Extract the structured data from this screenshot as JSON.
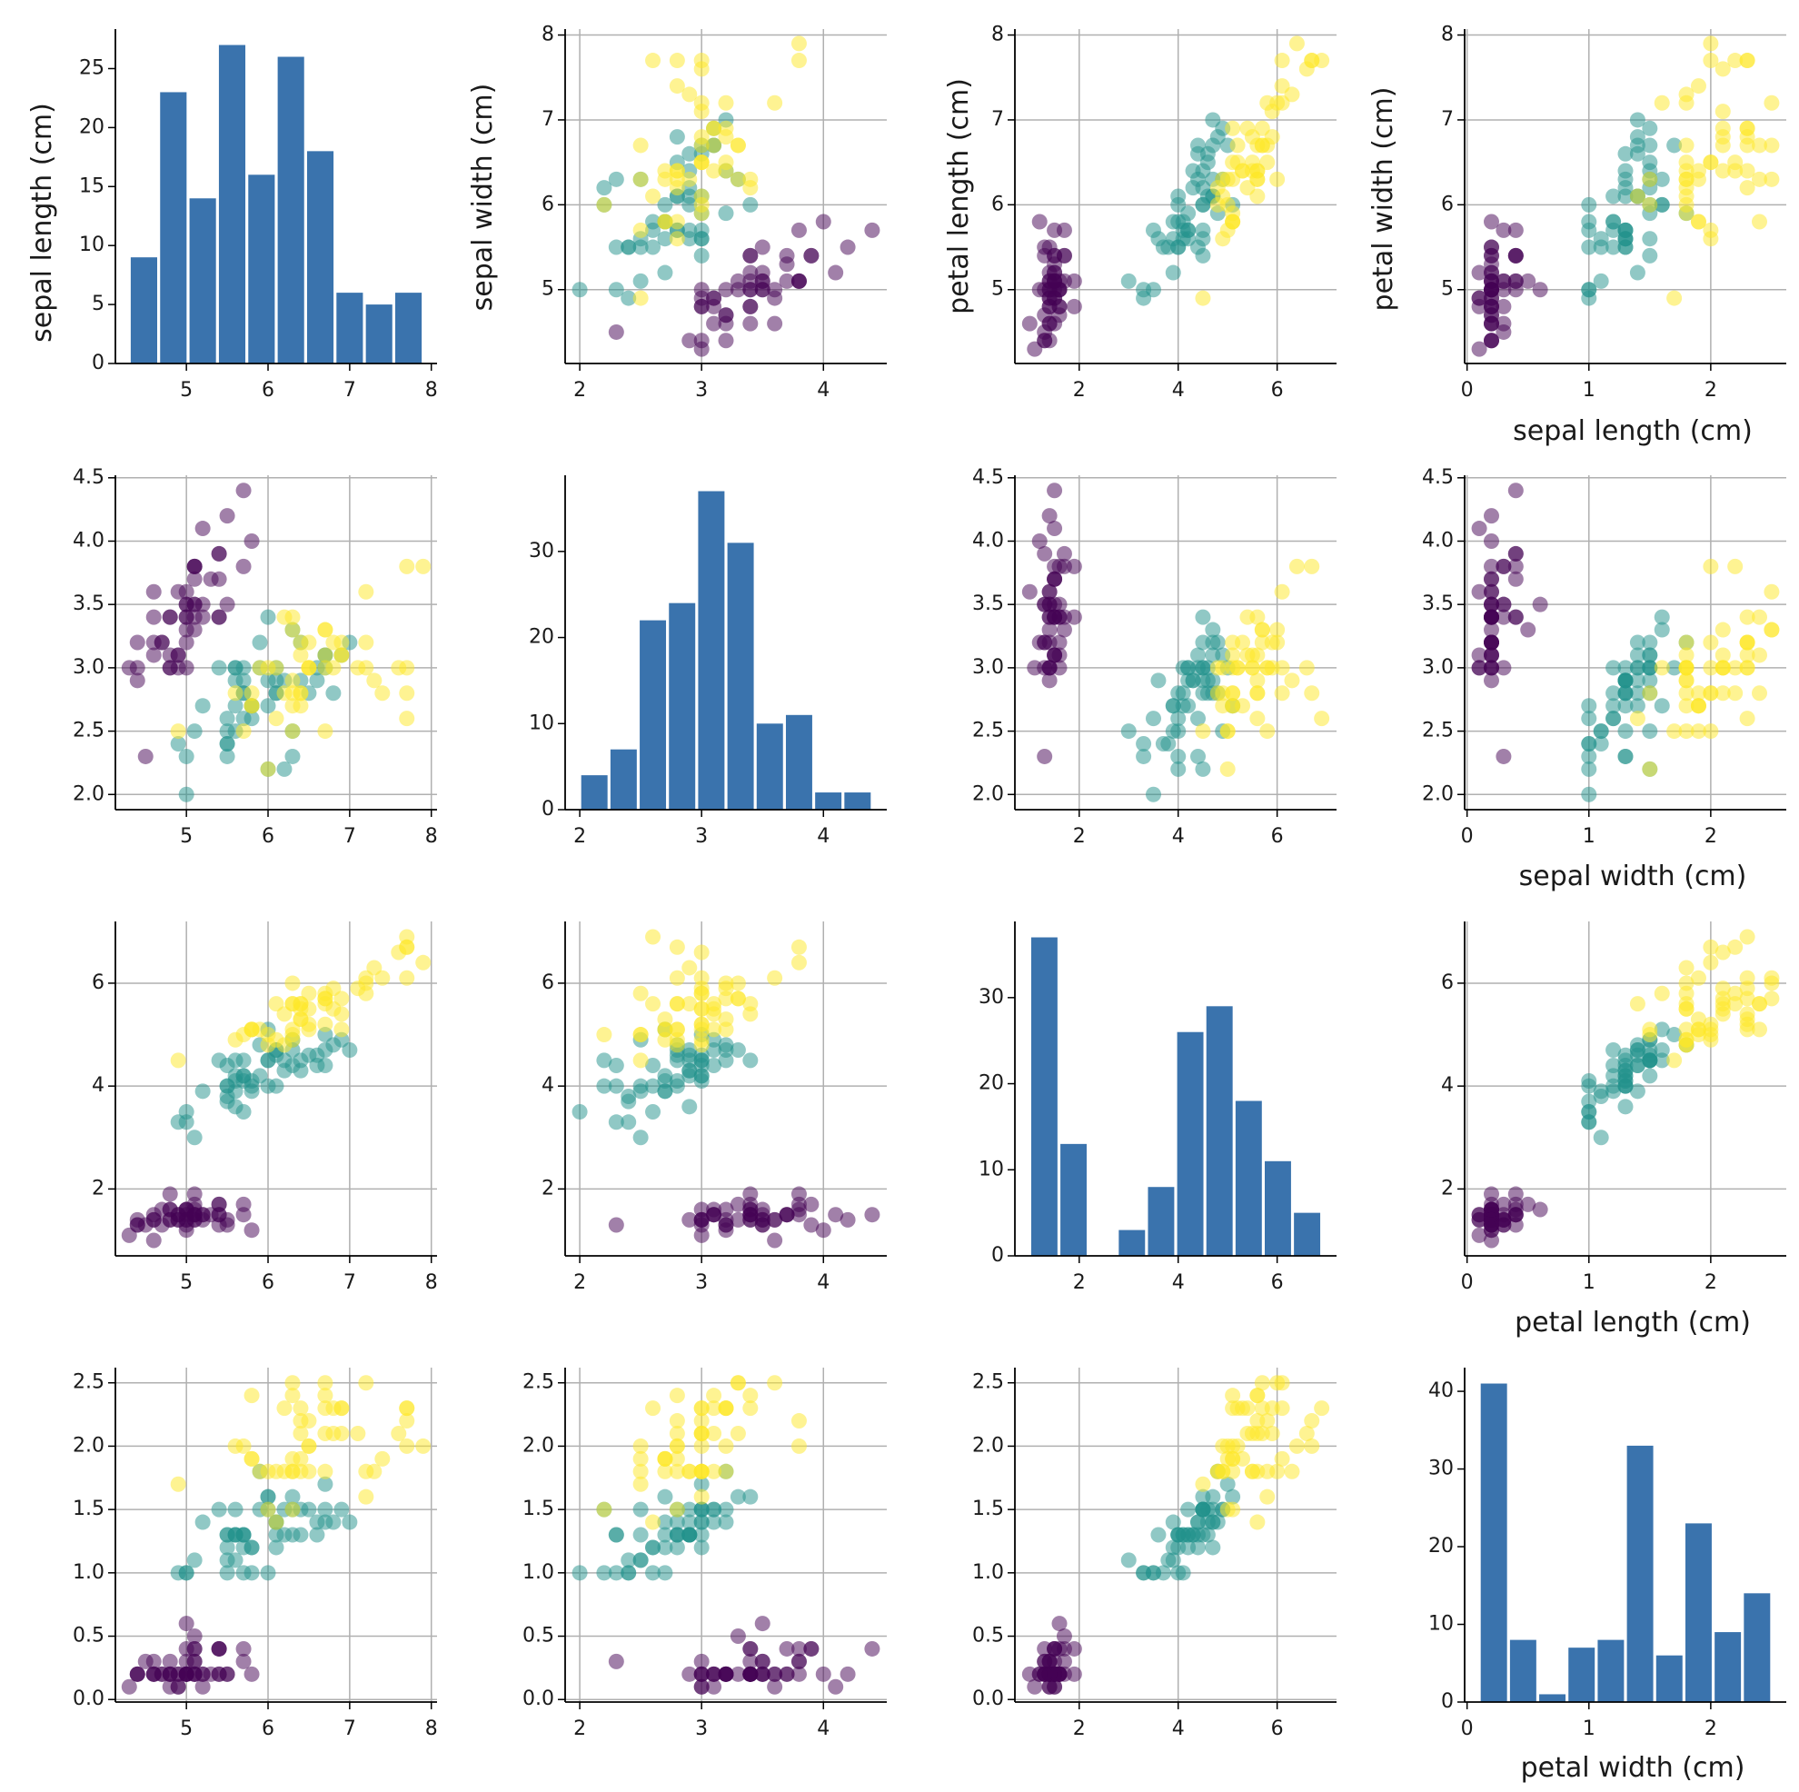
{
  "chart_data": {
    "type": "scatter_matrix",
    "title": "",
    "variables": [
      "sepal length (cm)",
      "sepal width (cm)",
      "petal length (cm)",
      "petal width (cm)"
    ],
    "class_colors": [
      "#440154",
      "#21918c",
      "#fde725"
    ],
    "bar_color": "#3a73ad",
    "grid_color": "#b0b0b0",
    "point_alpha": 0.5,
    "ranges": [
      [
        4.13,
        8.07
      ],
      [
        1.88,
        4.52
      ],
      [
        0.7,
        7.2
      ],
      [
        -0.02,
        2.62
      ]
    ],
    "ticks": [
      [
        5,
        6,
        7,
        8
      ],
      [
        2.0,
        2.5,
        3.0,
        3.5,
        4.0,
        4.5
      ],
      [
        2,
        4,
        6
      ],
      [
        0.0,
        0.5,
        1.0,
        1.5,
        2.0,
        2.5
      ]
    ],
    "tick_labels": [
      [
        "5",
        "6",
        "7",
        "8"
      ],
      [
        "2.0",
        "2.5",
        "3.0",
        "3.5",
        "4.0",
        "4.5"
      ],
      [
        "2",
        "4",
        "6"
      ],
      [
        "0.0",
        "0.5",
        "1.0",
        "1.5",
        "2.0",
        "2.5"
      ]
    ],
    "hist_x_ticks": [
      {
        "values": [
          5,
          6,
          7,
          8
        ],
        "labels": [
          "5",
          "6",
          "7",
          "8"
        ]
      },
      {
        "values": [
          2,
          3,
          4
        ],
        "labels": [
          "2",
          "3",
          "4"
        ]
      },
      {
        "values": [
          2,
          4,
          6
        ],
        "labels": [
          "2",
          "4",
          "6"
        ]
      },
      {
        "values": [
          0,
          1,
          2
        ],
        "labels": [
          "0",
          "1",
          "2"
        ]
      }
    ],
    "col_x_ticks": [
      {
        "values": [
          5,
          6,
          7,
          8
        ],
        "labels": [
          "5",
          "6",
          "7",
          "8"
        ]
      },
      {
        "values": [
          2,
          3,
          4
        ],
        "labels": [
          "2",
          "3",
          "4"
        ]
      },
      {
        "values": [
          2,
          4,
          6
        ],
        "labels": [
          "2",
          "4",
          "6"
        ]
      },
      {
        "values": [
          0,
          1,
          2
        ],
        "labels": [
          "0",
          "1",
          "2"
        ]
      }
    ],
    "row_y_ticks": [
      {
        "values": [
          5,
          6,
          7,
          8
        ],
        "labels": [
          "5",
          "6",
          "7",
          "8"
        ]
      },
      {
        "values": [
          2.0,
          2.5,
          3.0,
          3.5,
          4.0,
          4.5
        ],
        "labels": [
          "2.0",
          "2.5",
          "3.0",
          "3.5",
          "4.0",
          "4.5"
        ]
      },
      {
        "values": [
          2,
          4,
          6
        ],
        "labels": [
          "2",
          "4",
          "6"
        ]
      },
      {
        "values": [
          0.0,
          0.5,
          1.0,
          1.5,
          2.0,
          2.5
        ],
        "labels": [
          "0.0",
          "0.5",
          "1.0",
          "1.5",
          "2.0",
          "2.5"
        ]
      }
    ],
    "histograms": [
      {
        "variable": "sepal length (cm)",
        "bin_start": 4.3,
        "bin_width": 0.36,
        "counts": [
          9,
          23,
          14,
          27,
          16,
          26,
          18,
          6,
          5,
          6
        ],
        "ylim": [
          0,
          28.35
        ],
        "y_ticks": [
          0,
          5,
          10,
          15,
          20,
          25
        ],
        "y_tick_labels": [
          "0",
          "5",
          "10",
          "15",
          "20",
          "25"
        ]
      },
      {
        "variable": "sepal width (cm)",
        "bin_start": 2.0,
        "bin_width": 0.24,
        "counts": [
          4,
          7,
          22,
          24,
          37,
          31,
          10,
          11,
          2,
          2
        ],
        "ylim": [
          0,
          38.85
        ],
        "y_ticks": [
          0,
          10,
          20,
          30
        ],
        "y_tick_labels": [
          "0",
          "10",
          "20",
          "30"
        ]
      },
      {
        "variable": "petal length (cm)",
        "bin_start": 1.0,
        "bin_width": 0.59,
        "counts": [
          37,
          13,
          0,
          3,
          8,
          26,
          29,
          18,
          11,
          5
        ],
        "ylim": [
          0,
          38.85
        ],
        "y_ticks": [
          0,
          10,
          20,
          30
        ],
        "y_tick_labels": [
          "0",
          "10",
          "20",
          "30"
        ]
      },
      {
        "variable": "petal width (cm)",
        "bin_start": 0.1,
        "bin_width": 0.24,
        "counts": [
          41,
          8,
          1,
          7,
          8,
          33,
          6,
          23,
          9,
          14
        ],
        "ylim": [
          0,
          43.05
        ],
        "y_ticks": [
          0,
          10,
          20,
          30,
          40
        ],
        "y_tick_labels": [
          "0",
          "10",
          "20",
          "30",
          "40"
        ]
      }
    ],
    "samples": [
      [
        5.1,
        3.5,
        1.4,
        0.2,
        0
      ],
      [
        4.9,
        3.0,
        1.4,
        0.2,
        0
      ],
      [
        4.7,
        3.2,
        1.3,
        0.2,
        0
      ],
      [
        4.6,
        3.1,
        1.5,
        0.2,
        0
      ],
      [
        5.0,
        3.6,
        1.4,
        0.2,
        0
      ],
      [
        5.4,
        3.9,
        1.7,
        0.4,
        0
      ],
      [
        4.6,
        3.4,
        1.4,
        0.3,
        0
      ],
      [
        5.0,
        3.4,
        1.5,
        0.2,
        0
      ],
      [
        4.4,
        2.9,
        1.4,
        0.2,
        0
      ],
      [
        4.9,
        3.1,
        1.5,
        0.1,
        0
      ],
      [
        5.4,
        3.7,
        1.5,
        0.2,
        0
      ],
      [
        4.8,
        3.4,
        1.6,
        0.2,
        0
      ],
      [
        4.8,
        3.0,
        1.4,
        0.1,
        0
      ],
      [
        4.3,
        3.0,
        1.1,
        0.1,
        0
      ],
      [
        5.8,
        4.0,
        1.2,
        0.2,
        0
      ],
      [
        5.7,
        4.4,
        1.5,
        0.4,
        0
      ],
      [
        5.4,
        3.9,
        1.3,
        0.4,
        0
      ],
      [
        5.1,
        3.5,
        1.4,
        0.3,
        0
      ],
      [
        5.7,
        3.8,
        1.7,
        0.3,
        0
      ],
      [
        5.1,
        3.8,
        1.5,
        0.3,
        0
      ],
      [
        5.4,
        3.4,
        1.7,
        0.2,
        0
      ],
      [
        5.1,
        3.7,
        1.5,
        0.4,
        0
      ],
      [
        4.6,
        3.6,
        1.0,
        0.2,
        0
      ],
      [
        5.1,
        3.3,
        1.7,
        0.5,
        0
      ],
      [
        4.8,
        3.4,
        1.9,
        0.2,
        0
      ],
      [
        5.0,
        3.0,
        1.6,
        0.2,
        0
      ],
      [
        5.0,
        3.4,
        1.6,
        0.4,
        0
      ],
      [
        5.2,
        3.5,
        1.5,
        0.2,
        0
      ],
      [
        5.2,
        3.4,
        1.4,
        0.2,
        0
      ],
      [
        4.7,
        3.2,
        1.6,
        0.2,
        0
      ],
      [
        4.8,
        3.1,
        1.6,
        0.2,
        0
      ],
      [
        5.4,
        3.4,
        1.5,
        0.4,
        0
      ],
      [
        5.2,
        4.1,
        1.5,
        0.1,
        0
      ],
      [
        5.5,
        4.2,
        1.4,
        0.2,
        0
      ],
      [
        4.9,
        3.1,
        1.5,
        0.2,
        0
      ],
      [
        5.0,
        3.2,
        1.2,
        0.2,
        0
      ],
      [
        5.5,
        3.5,
        1.3,
        0.2,
        0
      ],
      [
        4.9,
        3.6,
        1.4,
        0.1,
        0
      ],
      [
        4.4,
        3.0,
        1.3,
        0.2,
        0
      ],
      [
        5.1,
        3.4,
        1.5,
        0.2,
        0
      ],
      [
        5.0,
        3.5,
        1.3,
        0.3,
        0
      ],
      [
        4.5,
        2.3,
        1.3,
        0.3,
        0
      ],
      [
        4.4,
        3.2,
        1.3,
        0.2,
        0
      ],
      [
        5.0,
        3.5,
        1.6,
        0.6,
        0
      ],
      [
        5.1,
        3.8,
        1.9,
        0.4,
        0
      ],
      [
        4.8,
        3.0,
        1.4,
        0.3,
        0
      ],
      [
        5.1,
        3.8,
        1.6,
        0.2,
        0
      ],
      [
        4.6,
        3.2,
        1.4,
        0.2,
        0
      ],
      [
        5.3,
        3.7,
        1.5,
        0.2,
        0
      ],
      [
        5.0,
        3.3,
        1.4,
        0.2,
        0
      ],
      [
        7.0,
        3.2,
        4.7,
        1.4,
        1
      ],
      [
        6.4,
        3.2,
        4.5,
        1.5,
        1
      ],
      [
        6.9,
        3.1,
        4.9,
        1.5,
        1
      ],
      [
        5.5,
        2.3,
        4.0,
        1.3,
        1
      ],
      [
        6.5,
        2.8,
        4.6,
        1.5,
        1
      ],
      [
        5.7,
        2.8,
        4.5,
        1.3,
        1
      ],
      [
        6.3,
        3.3,
        4.7,
        1.6,
        1
      ],
      [
        4.9,
        2.4,
        3.3,
        1.0,
        1
      ],
      [
        6.6,
        2.9,
        4.6,
        1.3,
        1
      ],
      [
        5.2,
        2.7,
        3.9,
        1.4,
        1
      ],
      [
        5.0,
        2.0,
        3.5,
        1.0,
        1
      ],
      [
        5.9,
        3.0,
        4.2,
        1.5,
        1
      ],
      [
        6.0,
        2.2,
        4.0,
        1.0,
        1
      ],
      [
        6.1,
        2.9,
        4.7,
        1.4,
        1
      ],
      [
        5.6,
        2.9,
        3.6,
        1.3,
        1
      ],
      [
        6.7,
        3.1,
        4.4,
        1.4,
        1
      ],
      [
        5.6,
        3.0,
        4.5,
        1.5,
        1
      ],
      [
        5.8,
        2.7,
        4.1,
        1.0,
        1
      ],
      [
        6.2,
        2.2,
        4.5,
        1.5,
        1
      ],
      [
        5.6,
        2.5,
        3.9,
        1.1,
        1
      ],
      [
        5.9,
        3.2,
        4.8,
        1.8,
        1
      ],
      [
        6.1,
        2.8,
        4.0,
        1.3,
        1
      ],
      [
        6.3,
        2.5,
        4.9,
        1.5,
        1
      ],
      [
        6.1,
        2.8,
        4.7,
        1.2,
        1
      ],
      [
        6.4,
        2.9,
        4.3,
        1.3,
        1
      ],
      [
        6.6,
        3.0,
        4.4,
        1.4,
        1
      ],
      [
        6.8,
        2.8,
        4.8,
        1.4,
        1
      ],
      [
        6.7,
        3.0,
        5.0,
        1.7,
        1
      ],
      [
        6.0,
        2.9,
        4.5,
        1.5,
        1
      ],
      [
        5.7,
        2.6,
        3.5,
        1.0,
        1
      ],
      [
        5.5,
        2.4,
        3.8,
        1.1,
        1
      ],
      [
        5.5,
        2.4,
        3.7,
        1.0,
        1
      ],
      [
        5.8,
        2.7,
        3.9,
        1.2,
        1
      ],
      [
        6.0,
        2.7,
        5.1,
        1.6,
        1
      ],
      [
        5.4,
        3.0,
        4.5,
        1.5,
        1
      ],
      [
        6.0,
        3.4,
        4.5,
        1.6,
        1
      ],
      [
        6.7,
        3.1,
        4.7,
        1.5,
        1
      ],
      [
        6.3,
        2.3,
        4.4,
        1.3,
        1
      ],
      [
        5.6,
        3.0,
        4.1,
        1.3,
        1
      ],
      [
        5.5,
        2.5,
        4.0,
        1.3,
        1
      ],
      [
        5.5,
        2.6,
        4.4,
        1.2,
        1
      ],
      [
        6.1,
        3.0,
        4.6,
        1.4,
        1
      ],
      [
        5.8,
        2.6,
        4.0,
        1.2,
        1
      ],
      [
        5.0,
        2.3,
        3.3,
        1.0,
        1
      ],
      [
        5.6,
        2.7,
        4.2,
        1.3,
        1
      ],
      [
        5.7,
        3.0,
        4.2,
        1.2,
        1
      ],
      [
        5.7,
        2.9,
        4.2,
        1.3,
        1
      ],
      [
        6.2,
        2.9,
        4.3,
        1.3,
        1
      ],
      [
        5.1,
        2.5,
        3.0,
        1.1,
        1
      ],
      [
        5.7,
        2.8,
        4.1,
        1.3,
        1
      ],
      [
        6.3,
        3.3,
        6.0,
        2.5,
        2
      ],
      [
        5.8,
        2.7,
        5.1,
        1.9,
        2
      ],
      [
        7.1,
        3.0,
        5.9,
        2.1,
        2
      ],
      [
        6.3,
        2.9,
        5.6,
        1.8,
        2
      ],
      [
        6.5,
        3.0,
        5.8,
        2.2,
        2
      ],
      [
        7.6,
        3.0,
        6.6,
        2.1,
        2
      ],
      [
        4.9,
        2.5,
        4.5,
        1.7,
        2
      ],
      [
        7.3,
        2.9,
        6.3,
        1.8,
        2
      ],
      [
        6.7,
        2.5,
        5.8,
        1.8,
        2
      ],
      [
        7.2,
        3.6,
        6.1,
        2.5,
        2
      ],
      [
        6.5,
        3.2,
        5.1,
        2.0,
        2
      ],
      [
        6.4,
        2.7,
        5.3,
        1.9,
        2
      ],
      [
        6.8,
        3.0,
        5.5,
        2.1,
        2
      ],
      [
        5.7,
        2.5,
        5.0,
        2.0,
        2
      ],
      [
        5.8,
        2.8,
        5.1,
        2.4,
        2
      ],
      [
        6.4,
        3.2,
        5.3,
        2.3,
        2
      ],
      [
        6.5,
        3.0,
        5.5,
        1.8,
        2
      ],
      [
        7.7,
        3.8,
        6.7,
        2.2,
        2
      ],
      [
        7.7,
        2.6,
        6.9,
        2.3,
        2
      ],
      [
        6.0,
        2.2,
        5.0,
        1.5,
        2
      ],
      [
        6.9,
        3.2,
        5.7,
        2.3,
        2
      ],
      [
        5.6,
        2.8,
        4.9,
        2.0,
        2
      ],
      [
        7.7,
        2.8,
        6.7,
        2.0,
        2
      ],
      [
        6.3,
        2.7,
        4.9,
        1.8,
        2
      ],
      [
        6.7,
        3.3,
        5.7,
        2.1,
        2
      ],
      [
        7.2,
        3.2,
        6.0,
        1.8,
        2
      ],
      [
        6.2,
        2.8,
        4.8,
        1.8,
        2
      ],
      [
        6.1,
        3.0,
        4.9,
        1.8,
        2
      ],
      [
        6.4,
        2.8,
        5.6,
        2.1,
        2
      ],
      [
        7.2,
        3.0,
        5.8,
        1.6,
        2
      ],
      [
        7.4,
        2.8,
        6.1,
        1.9,
        2
      ],
      [
        7.9,
        3.8,
        6.4,
        2.0,
        2
      ],
      [
        6.4,
        2.8,
        5.6,
        2.2,
        2
      ],
      [
        6.3,
        2.8,
        5.1,
        1.5,
        2
      ],
      [
        6.1,
        2.6,
        5.6,
        1.4,
        2
      ],
      [
        7.7,
        3.0,
        6.1,
        2.3,
        2
      ],
      [
        6.3,
        3.4,
        5.6,
        2.4,
        2
      ],
      [
        6.4,
        3.1,
        5.5,
        1.8,
        2
      ],
      [
        6.0,
        3.0,
        4.8,
        1.8,
        2
      ],
      [
        6.9,
        3.1,
        5.4,
        2.1,
        2
      ],
      [
        6.7,
        3.1,
        5.6,
        2.4,
        2
      ],
      [
        6.9,
        3.1,
        5.1,
        2.3,
        2
      ],
      [
        5.8,
        2.7,
        5.1,
        1.9,
        2
      ],
      [
        6.8,
        3.2,
        5.9,
        2.3,
        2
      ],
      [
        6.7,
        3.3,
        5.7,
        2.5,
        2
      ],
      [
        6.7,
        3.0,
        5.2,
        2.3,
        2
      ],
      [
        6.3,
        2.5,
        5.0,
        1.9,
        2
      ],
      [
        6.5,
        3.0,
        5.2,
        2.0,
        2
      ],
      [
        6.2,
        3.4,
        5.4,
        2.3,
        2
      ],
      [
        5.9,
        3.0,
        5.1,
        1.8,
        2
      ]
    ]
  }
}
